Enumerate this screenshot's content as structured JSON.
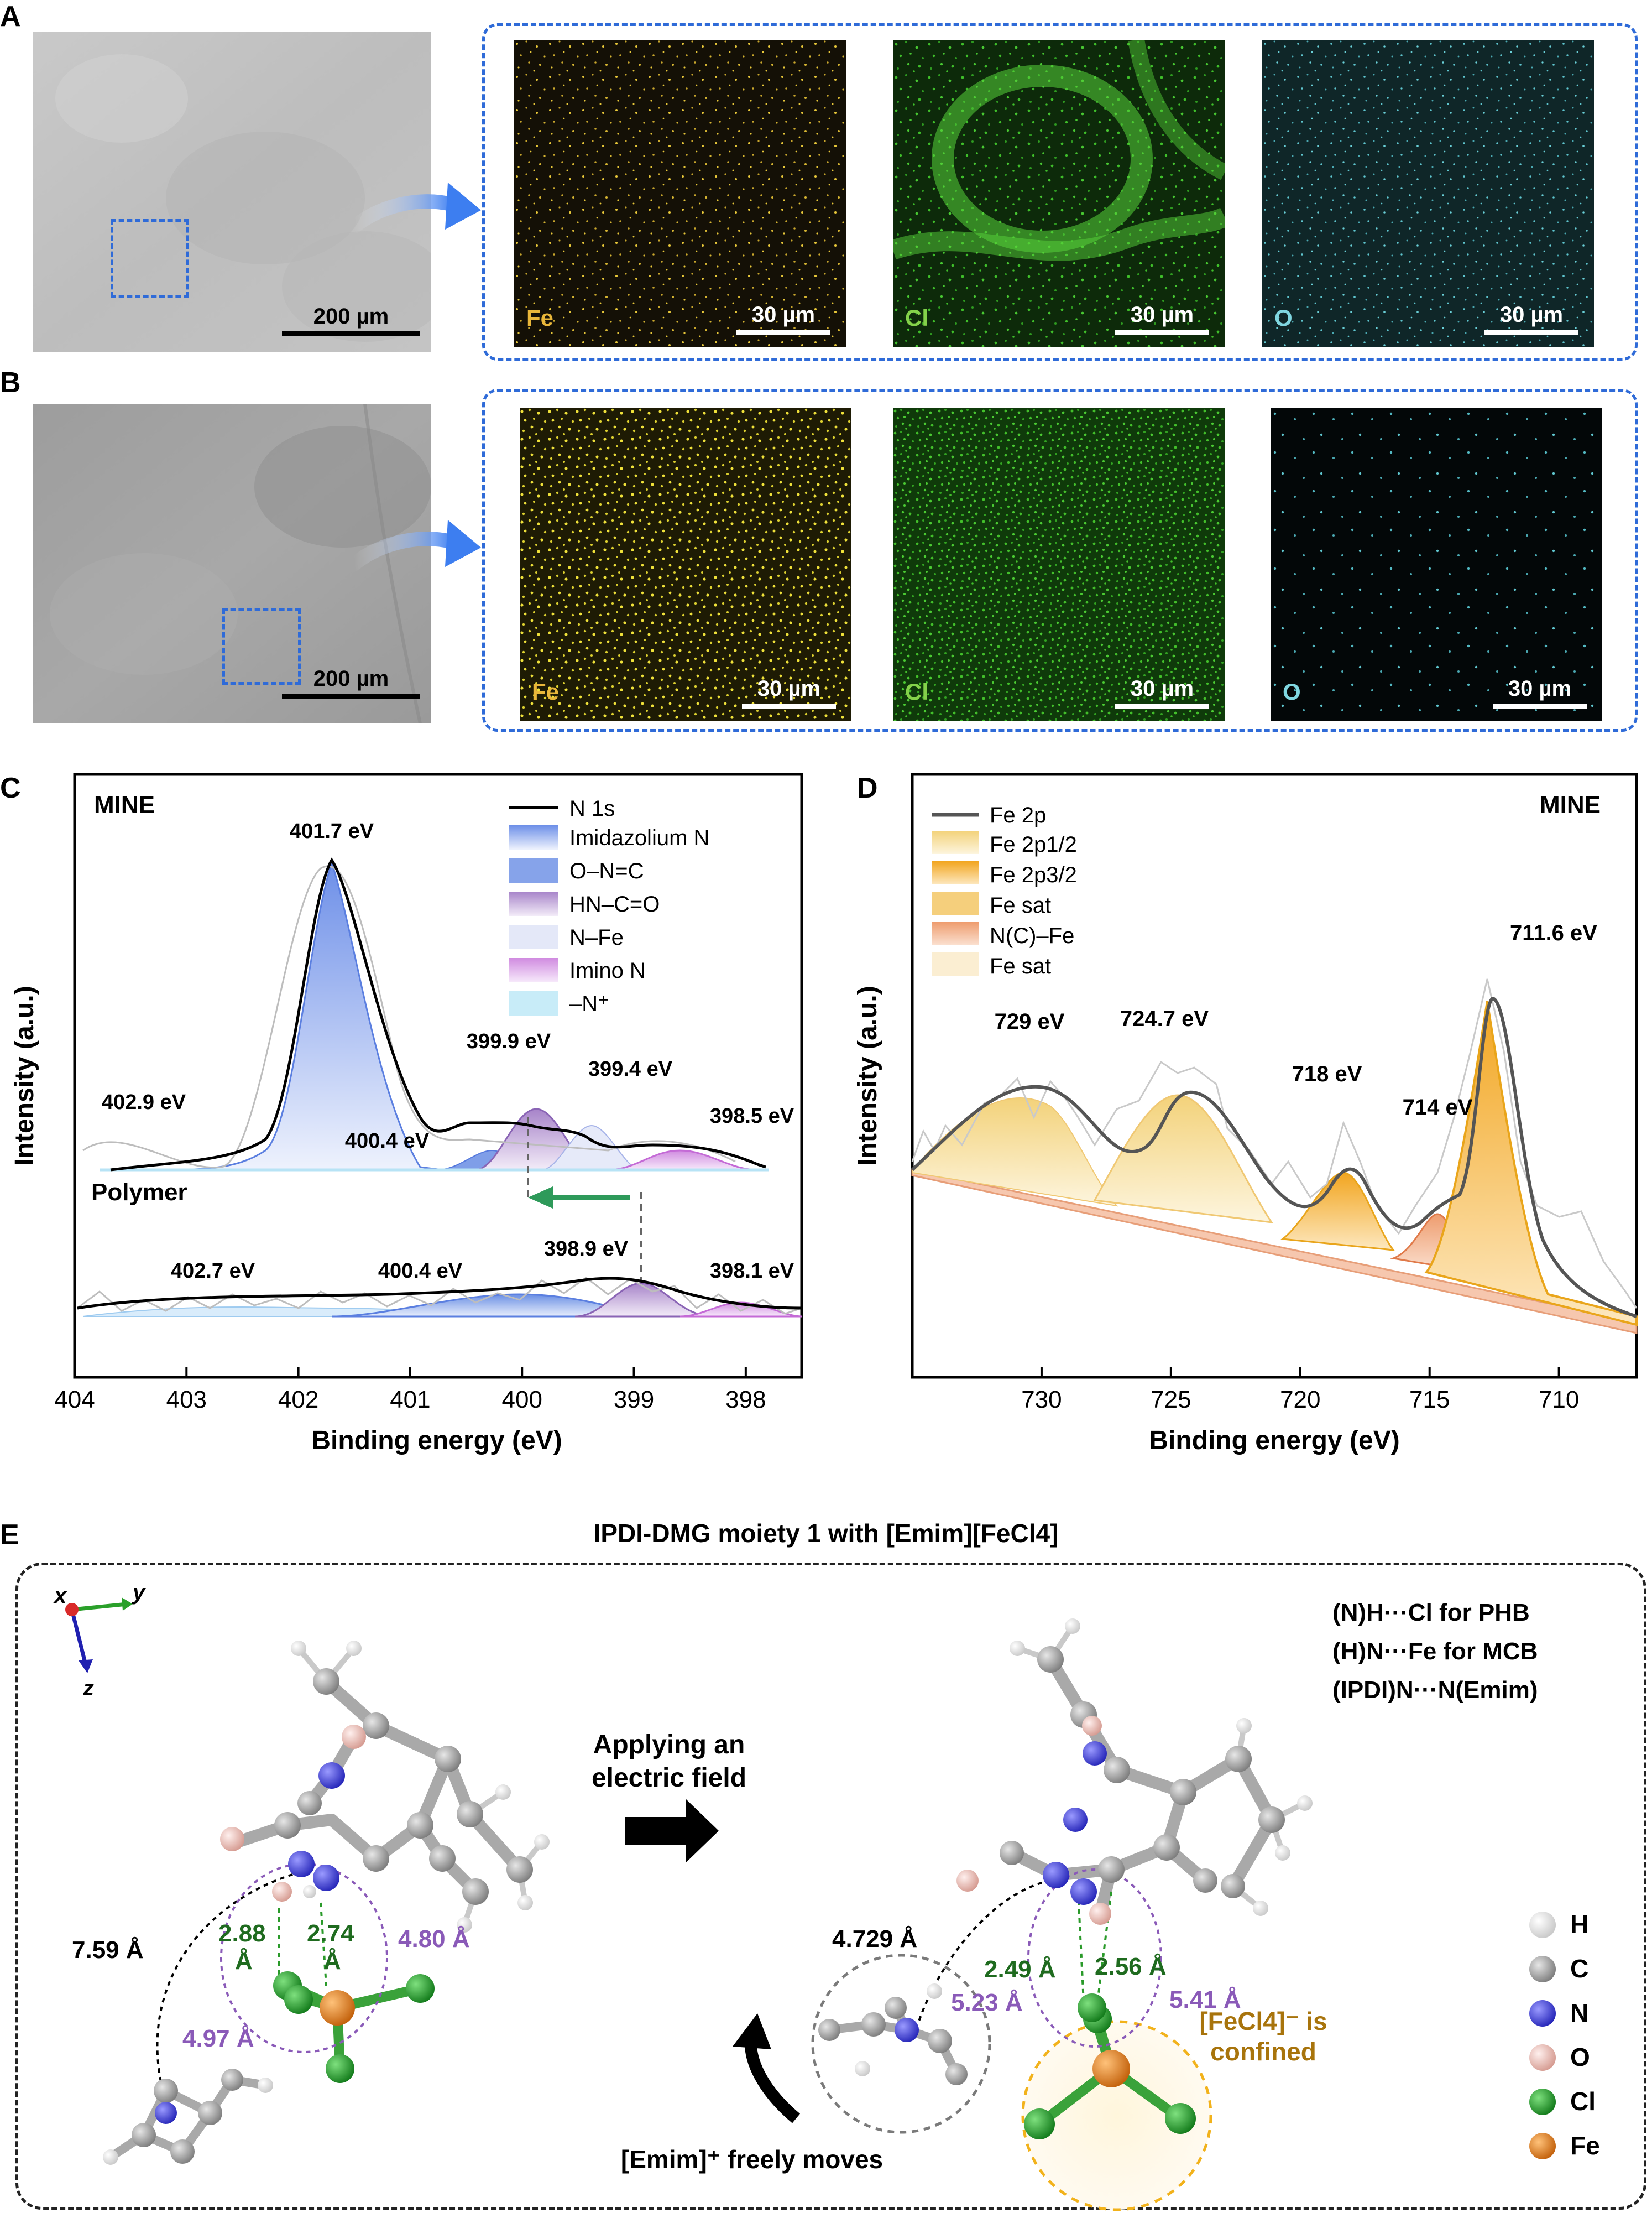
{
  "panels": {
    "a": {
      "label": "A",
      "sem_scale": "200 µm",
      "map_scale": "30 µm",
      "maps": [
        {
          "element": "Fe",
          "color": "#e8b63a"
        },
        {
          "element": "Cl",
          "color": "#84d14a"
        },
        {
          "element": "O",
          "color": "#7fd6e0"
        }
      ]
    },
    "b": {
      "label": "B",
      "sem_scale": "200 µm",
      "map_scale": "30 µm",
      "maps": [
        {
          "element": "Fe",
          "color": "#e8b63a"
        },
        {
          "element": "Cl",
          "color": "#84d14a"
        },
        {
          "element": "O",
          "color": "#7fd6e0"
        }
      ]
    },
    "c": {
      "label": "C",
      "tag_top": "MINE",
      "tag_bottom": "Polymer",
      "legend": [
        "N 1s",
        "Imidazolium N",
        "O–N=C",
        "HN–C=O",
        "N–Fe",
        "Imino N",
        "–N⁺"
      ]
    },
    "d": {
      "label": "D",
      "tag": "MINE",
      "legend": [
        "Fe 2p",
        "Fe 2p1/2",
        "Fe 2p3/2",
        "Fe sat",
        "N(C)–Fe",
        "Fe sat"
      ]
    },
    "e": {
      "label": "E",
      "title": "IPDI-DMG moiety 1 with [Emim][FeCl4]",
      "interactions": [
        "(N)H···Cl for PHB",
        "(H)N···Fe for MCB",
        "(IPDI)N···N(Emim)"
      ],
      "arrow_text_1": "Applying an",
      "arrow_text_2": "electric field",
      "emim_text": "[Emim]⁺ freely moves",
      "confined_1": "[FeCl4]⁻ is",
      "confined_2": "confined",
      "axes": [
        "x",
        "y",
        "z"
      ],
      "atoms": [
        {
          "label": "H",
          "color": "#f2f2f2"
        },
        {
          "label": "C",
          "color": "#9a9a9a"
        },
        {
          "label": "N",
          "color": "#3a3adb"
        },
        {
          "label": "O",
          "color": "#e9b3aa"
        },
        {
          "label": "Cl",
          "color": "#1f9a2a"
        },
        {
          "label": "Fe",
          "color": "#e07a12"
        }
      ],
      "left_distances": {
        "d1": "7.59 Å",
        "d2": "2.88",
        "d2u": "Å",
        "d3": "2.74",
        "d3u": "Å",
        "d4": "4.80 Å",
        "d5": "4.97 Å"
      },
      "right_distances": {
        "d1": "4.729 Å",
        "d2": "2.49 Å",
        "d3": "2.56 Å",
        "d4": "5.23 Å",
        "d5": "5.41 Å"
      }
    }
  },
  "chart_data": [
    {
      "type": "line",
      "panel": "C",
      "xlabel": "Binding energy (eV)",
      "ylabel": "Intensity (a.u.)",
      "xlim": [
        404,
        397.5
      ],
      "x_ticks": [
        "404",
        "403",
        "402",
        "401",
        "400",
        "399",
        "398"
      ],
      "series": [
        {
          "name": "MINE N 1s",
          "component_peaks_eV": [
            402.9,
            401.7,
            400.4,
            399.9,
            399.4,
            398.5
          ]
        },
        {
          "name": "Polymer N 1s",
          "component_peaks_eV": [
            402.7,
            400.4,
            398.9,
            398.1
          ]
        }
      ],
      "annotations": [
        "402.9 eV",
        "401.7 eV",
        "400.4 eV",
        "399.9 eV",
        "399.4 eV",
        "398.5 eV",
        "402.7 eV",
        "400.4 eV",
        "398.9 eV",
        "398.1 eV"
      ]
    },
    {
      "type": "line",
      "panel": "D",
      "xlabel": "Binding energy (eV)",
      "ylabel": "Intensity (a.u.)",
      "xlim": [
        735,
        707
      ],
      "x_ticks": [
        "730",
        "725",
        "720",
        "715",
        "710"
      ],
      "series": [
        {
          "name": "Fe 2p",
          "component_peaks_eV": [
            729,
            724.7,
            718,
            714,
            711.6
          ]
        }
      ],
      "annotations": [
        "729 eV",
        "724.7 eV",
        "718 eV",
        "714 eV",
        "711.6 eV"
      ]
    }
  ]
}
